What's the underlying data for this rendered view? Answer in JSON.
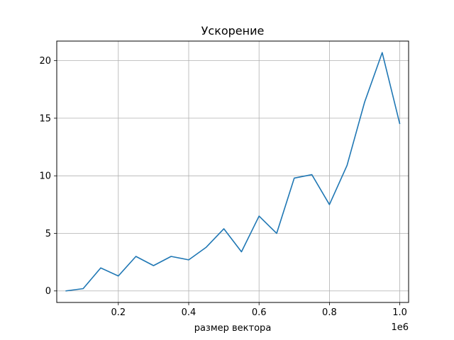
{
  "chart_data": {
    "type": "line",
    "title": "Ускорение",
    "xlabel": "размер вектора",
    "ylabel": "",
    "x_offset_label": "1e6",
    "xlim": [
      0.025,
      1.025
    ],
    "ylim": [
      -1.0,
      21.7
    ],
    "xticks": [
      0.2,
      0.4,
      0.6,
      0.8,
      1.0
    ],
    "xtick_labels": [
      "0.2",
      "0.4",
      "0.6",
      "0.8",
      "1.0"
    ],
    "yticks": [
      0,
      5,
      10,
      15,
      20
    ],
    "ytick_labels": [
      "0",
      "5",
      "10",
      "15",
      "20"
    ],
    "grid": true,
    "series": [
      {
        "color": "#1f77b4",
        "x": [
          0.05,
          0.1,
          0.15,
          0.2,
          0.25,
          0.3,
          0.35,
          0.4,
          0.45,
          0.5,
          0.55,
          0.6,
          0.65,
          0.7,
          0.75,
          0.8,
          0.85,
          0.9,
          0.95,
          1.0
        ],
        "y": [
          0.0,
          0.2,
          2.0,
          1.3,
          3.0,
          2.2,
          3.0,
          2.7,
          3.8,
          5.4,
          3.4,
          6.5,
          5.0,
          9.8,
          10.1,
          7.5,
          10.9,
          16.4,
          20.7,
          14.5
        ]
      }
    ]
  }
}
